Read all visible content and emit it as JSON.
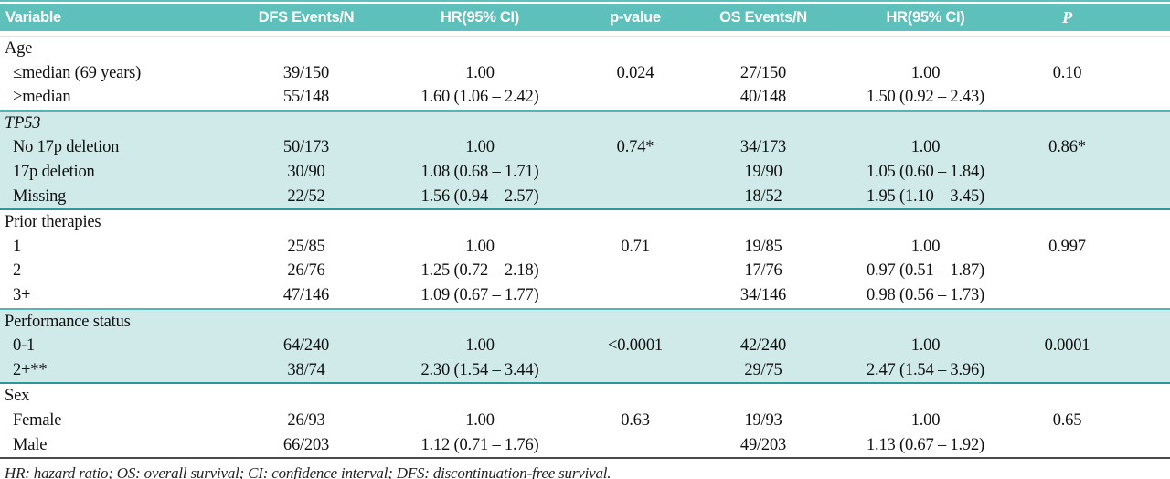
{
  "colors": {
    "teal_header": "#5ec0bb",
    "teal_band": "#cfeae9",
    "teal_dark_rule": "#2f9894",
    "band_top_edge": "#53b6b1",
    "dark_rule": "#4a4a4a",
    "faint_line": "#dceae9"
  },
  "table": {
    "columns": [
      "Variable",
      "DFS Events/N",
      "HR(95% CI)",
      "p-value",
      "OS Events/N",
      "HR(95% CI)",
      "P"
    ],
    "sections": [
      {
        "label": "Age",
        "italic": false,
        "shaded": false,
        "rows": [
          {
            "cells": [
              "≤median (69 years)",
              "39/150",
              "1.00",
              "0.024",
              "27/150",
              "1.00",
              "0.10"
            ]
          },
          {
            "cells": [
              ">median",
              "55/148",
              "1.60 (1.06 – 2.42)",
              "",
              "40/148",
              "1.50 (0.92 – 2.43)",
              ""
            ]
          }
        ]
      },
      {
        "label": "TP53",
        "italic": true,
        "shaded": true,
        "rows": [
          {
            "cells": [
              "No 17p deletion",
              "50/173",
              "1.00",
              "0.74*",
              "34/173",
              "1.00",
              "0.86*"
            ]
          },
          {
            "cells": [
              "17p deletion",
              "30/90",
              "1.08 (0.68 – 1.71)",
              "",
              "19/90",
              "1.05 (0.60 – 1.84)",
              ""
            ]
          },
          {
            "cells": [
              "Missing",
              "22/52",
              "1.56 (0.94 – 2.57)",
              "",
              "18/52",
              "1.95 (1.10 – 3.45)",
              ""
            ]
          }
        ]
      },
      {
        "label": "Prior therapies",
        "italic": false,
        "shaded": false,
        "rows": [
          {
            "cells": [
              "1",
              "25/85",
              "1.00",
              "0.71",
              "19/85",
              "1.00",
              "0.997"
            ]
          },
          {
            "cells": [
              "2",
              "26/76",
              "1.25 (0.72 – 2.18)",
              "",
              "17/76",
              "0.97 (0.51 – 1.87)",
              ""
            ]
          },
          {
            "cells": [
              "3+",
              "47/146",
              "1.09 (0.67 – 1.77)",
              "",
              "34/146",
              "0.98 (0.56 – 1.73)",
              ""
            ]
          }
        ]
      },
      {
        "label": "Performance status",
        "italic": false,
        "shaded": true,
        "rows": [
          {
            "cells": [
              "0-1",
              "64/240",
              "1.00",
              "<0.0001",
              "42/240",
              "1.00",
              "0.0001"
            ]
          },
          {
            "cells": [
              "2+**",
              "38/74",
              "2.30 (1.54 – 3.44)",
              "",
              "29/75",
              "2.47 (1.54 – 3.96)",
              ""
            ]
          }
        ]
      },
      {
        "label": "Sex",
        "italic": false,
        "shaded": false,
        "rows": [
          {
            "cells": [
              "Female",
              "26/93",
              "1.00",
              "0.63",
              "19/93",
              "1.00",
              "0.65"
            ]
          },
          {
            "cells": [
              "Male",
              "66/203",
              "1.12 (0.71 – 1.76)",
              "",
              "49/203",
              "1.13 (0.67 – 1.92)",
              ""
            ]
          }
        ]
      }
    ],
    "footnote": "HR: hazard ratio; OS: overall survival; CI: confidence interval; DFS: discontinuation-free survival."
  }
}
